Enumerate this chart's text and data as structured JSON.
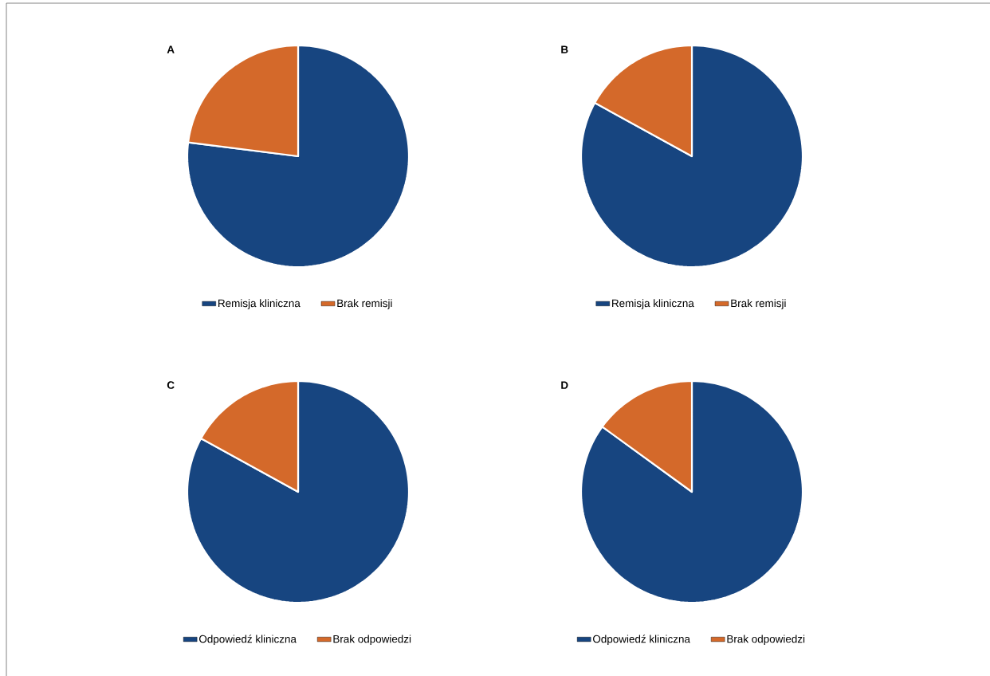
{
  "chart_data": [
    {
      "type": "pie",
      "title": "A",
      "categories": [
        "Remisja kliniczna",
        "Brak remisji"
      ],
      "values": [
        77,
        23
      ],
      "colors": [
        "#174580",
        "#d4692a"
      ],
      "legend": "bottom"
    },
    {
      "type": "pie",
      "title": "B",
      "categories": [
        "Remisja kliniczna",
        "Brak remisji"
      ],
      "values": [
        83,
        17
      ],
      "colors": [
        "#174580",
        "#d4692a"
      ],
      "legend": "bottom"
    },
    {
      "type": "pie",
      "title": "C",
      "categories": [
        "Odpowiedź kliniczna",
        "Brak odpowiedzi"
      ],
      "values": [
        83,
        17
      ],
      "colors": [
        "#174580",
        "#d4692a"
      ],
      "legend": "bottom"
    },
    {
      "type": "pie",
      "title": "D",
      "categories": [
        "Odpowiedź kliniczna",
        "Brak odpowiedzi"
      ],
      "values": [
        85,
        15
      ],
      "colors": [
        "#174580",
        "#d4692a"
      ],
      "legend": "bottom"
    }
  ]
}
